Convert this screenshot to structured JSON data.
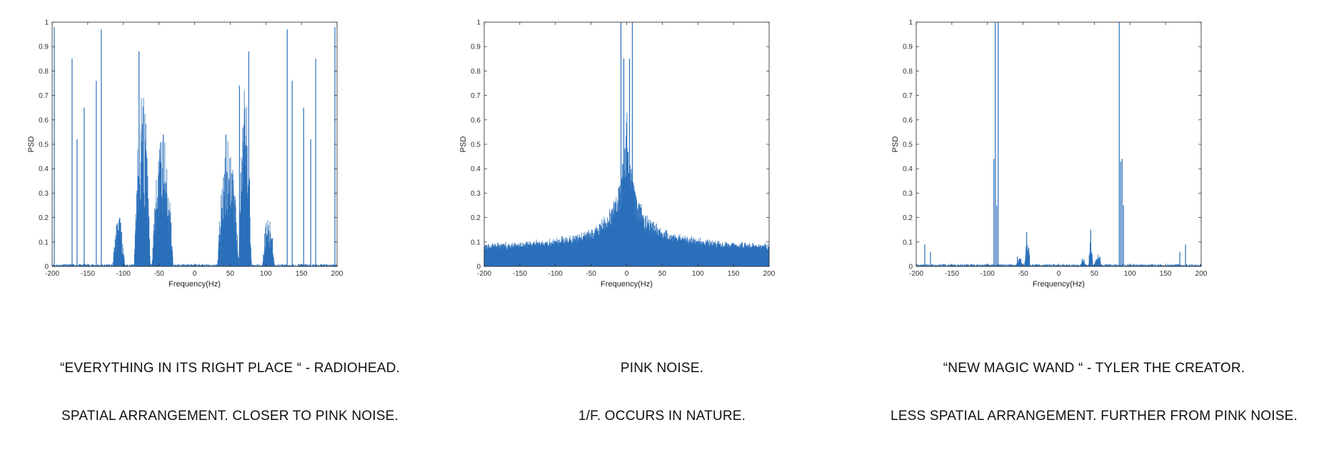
{
  "chart_data": [
    {
      "type": "line",
      "title": "",
      "xlabel": "Frequency(Hz)",
      "ylabel": "PSD",
      "xlim": [
        -200,
        200
      ],
      "ylim": [
        0,
        1
      ],
      "xticks": [
        -200,
        -150,
        -100,
        -50,
        0,
        50,
        100,
        150,
        200
      ],
      "yticks": [
        0,
        0.1,
        0.2,
        0.3,
        0.4,
        0.5,
        0.6,
        0.7,
        0.8,
        0.9,
        1
      ],
      "grid": false,
      "line_color": "#2a6fba",
      "spikes": [
        [
          -197,
          0.98
        ],
        [
          -172,
          0.85
        ],
        [
          -165,
          0.52
        ],
        [
          -155,
          0.65
        ],
        [
          -138,
          0.76
        ],
        [
          -131,
          0.97
        ],
        [
          -78,
          0.88
        ],
        [
          -44,
          0.54
        ],
        [
          44,
          0.54
        ],
        [
          63,
          0.74
        ],
        [
          76,
          0.88
        ],
        [
          130,
          0.97
        ],
        [
          137,
          0.76
        ],
        [
          153,
          0.65
        ],
        [
          163,
          0.52
        ],
        [
          170,
          0.85
        ],
        [
          197,
          0.98
        ]
      ],
      "bands": [
        {
          "x": [
            -115,
            -98
          ],
          "peak": 0.22
        },
        {
          "x": [
            -85,
            -62
          ],
          "peak": 0.73
        },
        {
          "x": [
            -60,
            -30
          ],
          "peak": 0.55
        },
        {
          "x": [
            32,
            62
          ],
          "peak": 0.55
        },
        {
          "x": [
            62,
            80
          ],
          "peak": 0.74
        },
        {
          "x": [
            95,
            112
          ],
          "peak": 0.22
        }
      ]
    },
    {
      "type": "line",
      "title": "",
      "xlabel": "Frequency(Hz)",
      "ylabel": "PSD",
      "xlim": [
        -200,
        200
      ],
      "ylim": [
        0,
        1
      ],
      "xticks": [
        -200,
        -150,
        -100,
        -50,
        0,
        50,
        100,
        150,
        200
      ],
      "yticks": [
        0,
        0.1,
        0.2,
        0.3,
        0.4,
        0.5,
        0.6,
        0.7,
        0.8,
        0.9,
        1
      ],
      "grid": false,
      "line_color": "#2a6fba",
      "profile": "1/f",
      "center_peak": 1.0,
      "floor": 0.05,
      "spikes": [
        [
          -8,
          1.0
        ],
        [
          -4,
          0.85
        ],
        [
          4,
          0.85
        ],
        [
          8,
          1.0
        ]
      ]
    },
    {
      "type": "line",
      "title": "",
      "xlabel": "Frequency(Hz)",
      "ylabel": "PSD",
      "xlim": [
        -200,
        200
      ],
      "ylim": [
        0,
        1
      ],
      "xticks": [
        -200,
        -150,
        -100,
        -50,
        0,
        50,
        100,
        150,
        200
      ],
      "yticks": [
        0,
        0.1,
        0.2,
        0.3,
        0.4,
        0.5,
        0.6,
        0.7,
        0.8,
        0.9,
        1
      ],
      "grid": false,
      "line_color": "#2a6fba",
      "spikes": [
        [
          -89,
          1.0
        ],
        [
          -91,
          0.44
        ],
        [
          -87,
          0.25
        ],
        [
          -85,
          1.0
        ],
        [
          85,
          1.0
        ],
        [
          87,
          0.43
        ],
        [
          89,
          0.44
        ],
        [
          91,
          0.25
        ],
        [
          -188,
          0.09
        ],
        [
          -180,
          0.06
        ],
        [
          -45,
          0.14
        ],
        [
          45,
          0.15
        ],
        [
          -58,
          0.04
        ],
        [
          58,
          0.04
        ],
        [
          178,
          0.09
        ],
        [
          170,
          0.06
        ]
      ],
      "bands": [
        {
          "x": [
            -60,
            -50
          ],
          "peak": 0.04
        },
        {
          "x": [
            -48,
            -40
          ],
          "peak": 0.12
        },
        {
          "x": [
            30,
            38
          ],
          "peak": 0.04
        },
        {
          "x": [
            42,
            48
          ],
          "peak": 0.12
        },
        {
          "x": [
            50,
            60
          ],
          "peak": 0.05
        }
      ]
    }
  ],
  "captions": [
    {
      "title": "“EVERYTHING IN ITS RIGHT PLACE “ - RADIOHEAD.",
      "note": "SPATIAL ARRANGEMENT. CLOSER TO PINK NOISE."
    },
    {
      "title": "PINK NOISE.",
      "note": "1/F. OCCURS IN NATURE."
    },
    {
      "title": "“NEW MAGIC WAND “ - TYLER THE CREATOR.",
      "note": "LESS SPATIAL ARRANGEMENT. FURTHER FROM PINK NOISE."
    }
  ]
}
